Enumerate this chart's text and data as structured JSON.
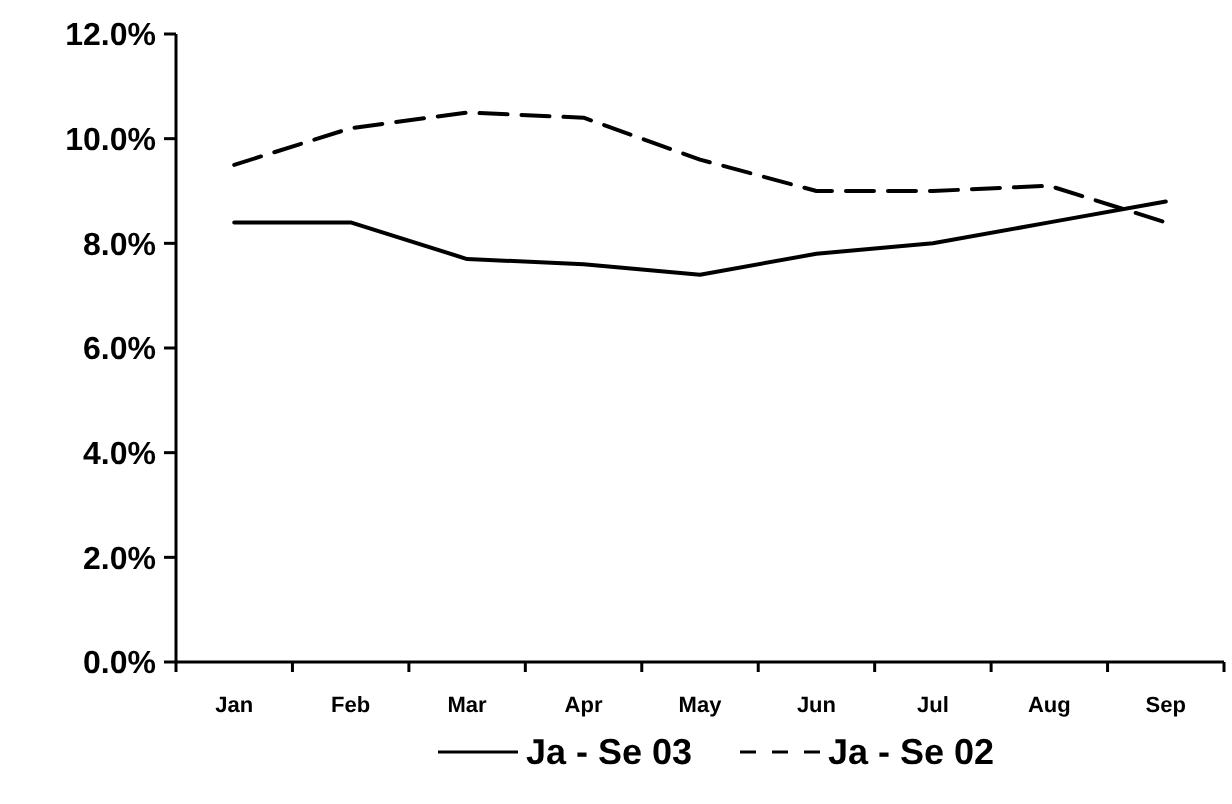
{
  "chart_data": {
    "type": "line",
    "categories": [
      "Jan",
      "Feb",
      "Mar",
      "Apr",
      "May",
      "Jun",
      "Jul",
      "Aug",
      "Sep"
    ],
    "series": [
      {
        "name": "Ja - Se 03",
        "color": "#000000",
        "line_style": "solid",
        "values": [
          8.4,
          8.4,
          7.7,
          7.6,
          7.4,
          7.8,
          8.0,
          8.4,
          8.8
        ]
      },
      {
        "name": "Ja - Se 02",
        "color": "#000000",
        "line_style": "dashed",
        "values": [
          9.5,
          10.2,
          10.5,
          10.4,
          9.6,
          9.0,
          9.0,
          9.1,
          8.4
        ]
      }
    ],
    "ylim": [
      0,
      12
    ],
    "yticks": [
      {
        "value": 0,
        "label": "0.0%"
      },
      {
        "value": 2,
        "label": "2.0%"
      },
      {
        "value": 4,
        "label": "4.0%"
      },
      {
        "value": 6,
        "label": "6.0%"
      },
      {
        "value": 8,
        "label": "8.0%"
      },
      {
        "value": 10,
        "label": "10.0%"
      },
      {
        "value": 12,
        "label": "12.0%"
      }
    ],
    "grid": false,
    "legend": "bottom",
    "marker": "none"
  }
}
